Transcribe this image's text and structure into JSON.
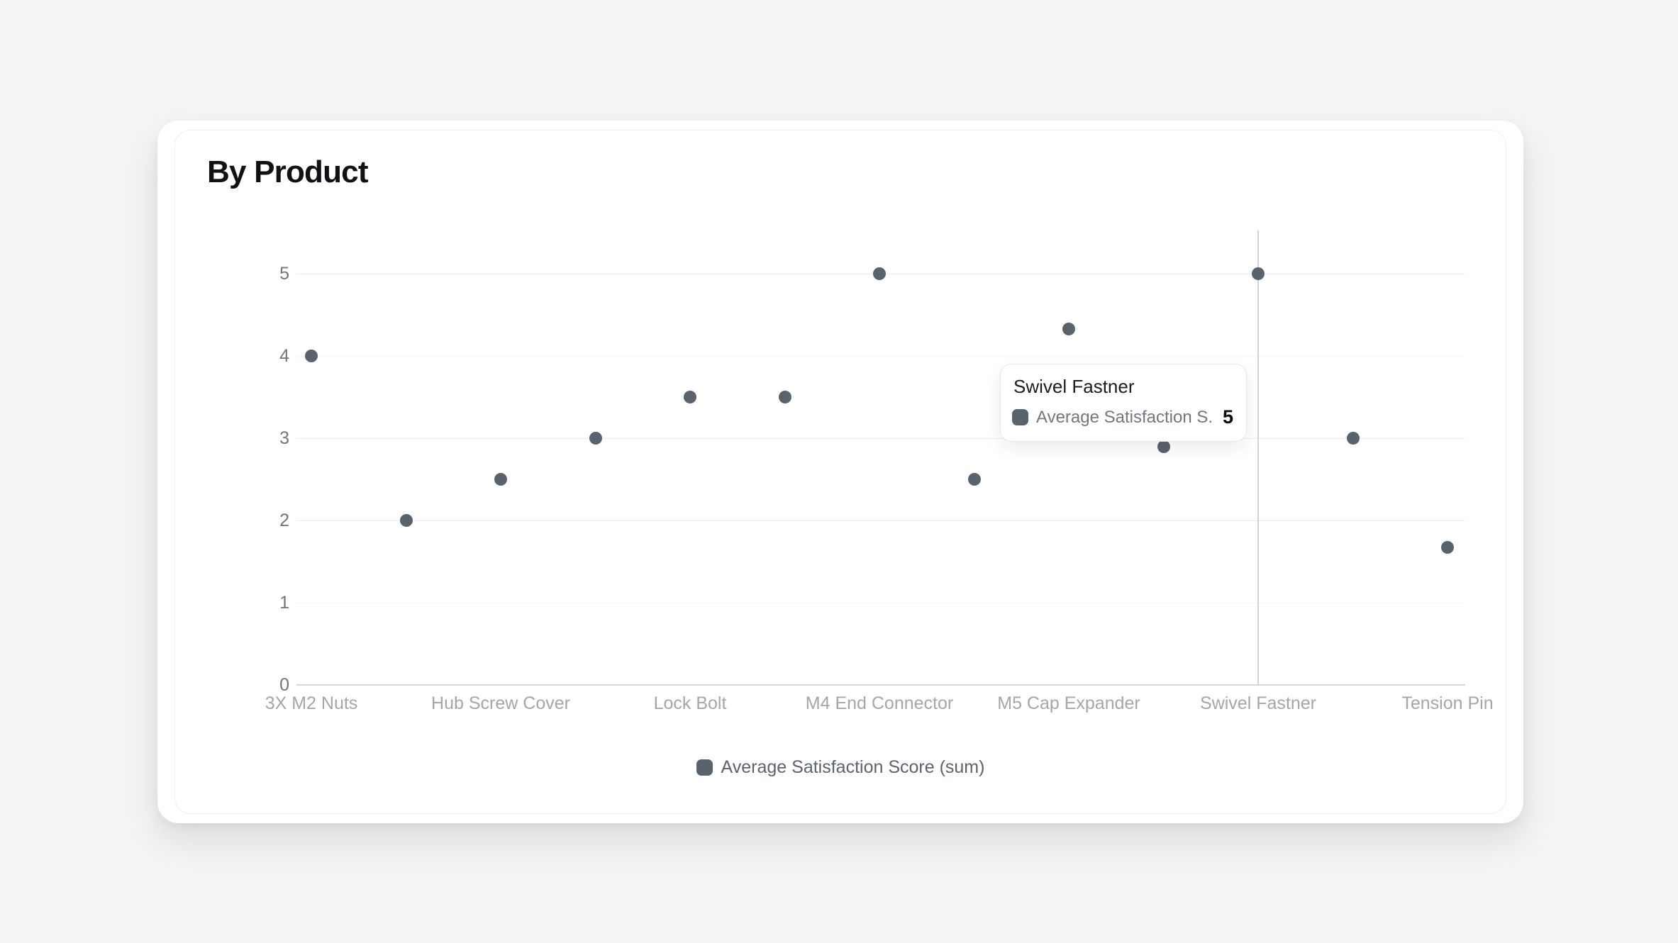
{
  "card": {
    "title": "By Product"
  },
  "chart_data": {
    "type": "scatter",
    "title": "By Product",
    "series": [
      {
        "name": "Average Satisfaction Score (sum)",
        "points": [
          {
            "category": "3X M2 Nuts",
            "value": 4
          },
          {
            "category": null,
            "value": 2
          },
          {
            "category": "Hub Screw Cover",
            "value": 2.5
          },
          {
            "category": null,
            "value": 3
          },
          {
            "category": "Lock Bolt",
            "value": 3.5
          },
          {
            "category": null,
            "value": 3.5
          },
          {
            "category": "M4 End Connector",
            "value": 5
          },
          {
            "category": null,
            "value": 2.5
          },
          {
            "category": "M5 Cap Expander",
            "value": 4.33
          },
          {
            "category": null,
            "value": 2.9,
            "occluded_by_tooltip": true
          },
          {
            "category": "Swivel Fastner",
            "value": 5,
            "hovered": true
          },
          {
            "category": null,
            "value": 3
          },
          {
            "category": "Tension Pin",
            "value": 1.67
          }
        ]
      }
    ],
    "x_tick_labels": [
      "3X M2 Nuts",
      "Hub Screw Cover",
      "Lock Bolt",
      "M4 End Connector",
      "M5 Cap Expander",
      "Swivel Fastner",
      "Tension Pin"
    ],
    "y_ticks": [
      0,
      1,
      2,
      3,
      4,
      5
    ],
    "ylim": [
      0,
      5
    ],
    "grid": "horizontal",
    "legend_position": "bottom"
  },
  "tooltip": {
    "title": "Swivel Fastner",
    "series_label": "Average Satisfaction S...",
    "value": "5"
  },
  "legend": {
    "label": "Average Satisfaction Score (sum)"
  },
  "colors": {
    "page_background": "#f4f4f5",
    "card_background": "#ffffff",
    "point": "#59636e",
    "swatch": "#59636e",
    "crosshair": "#d2d2d7",
    "gridline": "#ededf0",
    "axis_line": "#d7d7db",
    "y_tick_label": "#6f7680",
    "x_tick_label": "#a5a5ac",
    "legend_text": "#5d636b",
    "title_text": "#101114",
    "tooltip_title": "#1c1c20",
    "tooltip_label": "#71767f",
    "tooltip_value": "#0b0b0d"
  }
}
